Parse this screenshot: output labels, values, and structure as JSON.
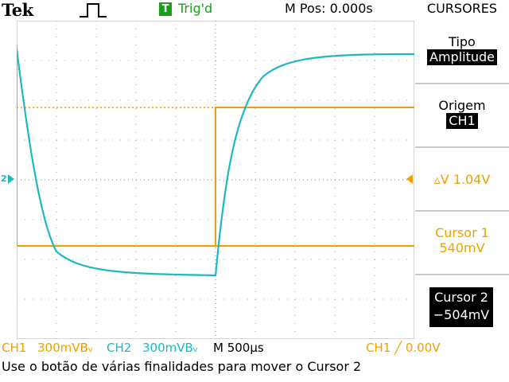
{
  "header": {
    "brand": "Tek",
    "trigger_badge": "T",
    "trigger_status": "Trig'd",
    "position": "M Pos: 0.000s"
  },
  "menu": {
    "title": "CURSORES",
    "type_label": "Tipo",
    "type_value": "Amplitude",
    "source_label": "Origem",
    "source_value": "CH1",
    "delta": "▵V 1.04V",
    "cursor1_label": "Cursor 1",
    "cursor1_value": "540mV",
    "cursor2_label": "Cursor 2",
    "cursor2_value": "−504mV"
  },
  "status": {
    "ch1": "CH1",
    "ch1_scale": "300mVBᵥ",
    "ch2": "CH2",
    "ch2_scale": "300mVBᵥ",
    "timebase": "M 500µs",
    "trigger": "CH1 ╱ 0.00V"
  },
  "message": "Use o botão de várias finalidades para mover o Cursor 2",
  "marker_label": "2",
  "colors": {
    "ch1": "#f0a000",
    "ch2": "#20b8c0",
    "trigger_green": "#18a018"
  }
}
